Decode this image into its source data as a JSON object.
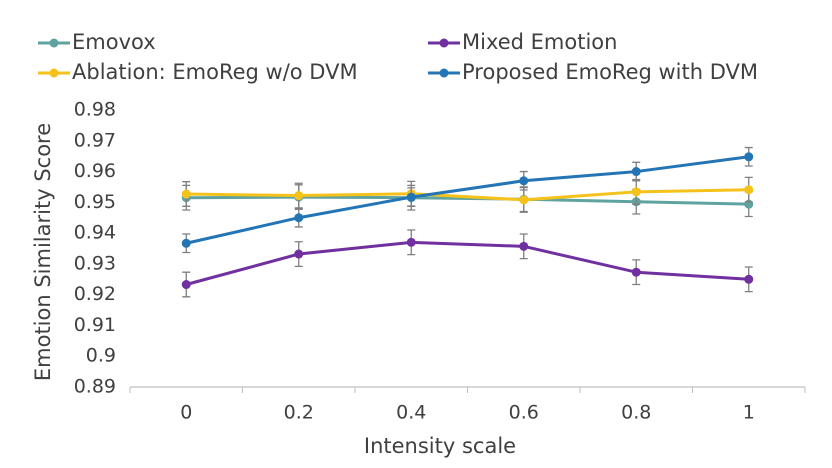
{
  "chart_data": {
    "type": "line",
    "x_label": "Intensity scale",
    "y_label": "Emotion Similarity Score",
    "categories": [
      "0",
      "0.2",
      "0.4",
      "0.6",
      "0.8",
      "1"
    ],
    "series": [
      {
        "name": "Emovox",
        "color": "#5fa3a0",
        "values": [
          0.9515,
          0.9517,
          0.9515,
          0.951,
          0.9502,
          0.9494
        ],
        "errors": [
          0.004,
          0.004,
          0.004,
          0.004,
          0.004,
          0.004
        ]
      },
      {
        "name": "Mixed Emotion",
        "color": "#7030a0",
        "values": [
          0.9233,
          0.9332,
          0.937,
          0.9357,
          0.9273,
          0.925
        ],
        "errors": [
          0.004,
          0.004,
          0.004,
          0.004,
          0.004,
          0.004
        ]
      },
      {
        "name": "Ablation: EmoReg w/o DVM",
        "color": "#f5c21b",
        "values": [
          0.9527,
          0.9522,
          0.9528,
          0.9508,
          0.9534,
          0.9541
        ],
        "errors": [
          0.004,
          0.004,
          0.004,
          0.004,
          0.004,
          0.004
        ]
      },
      {
        "name": "Proposed EmoReg with DVM",
        "color": "#2475b5",
        "values": [
          0.9367,
          0.945,
          0.9517,
          0.957,
          0.96,
          0.9648
        ],
        "errors": [
          0.003,
          0.003,
          0.003,
          0.003,
          0.003,
          0.003
        ]
      }
    ],
    "ylim": [
      0.89,
      0.98
    ],
    "yticks": [
      0.89,
      0.9,
      0.91,
      0.92,
      0.93,
      0.94,
      0.95,
      0.96,
      0.97,
      0.98
    ],
    "grid": false,
    "legend": "top"
  }
}
